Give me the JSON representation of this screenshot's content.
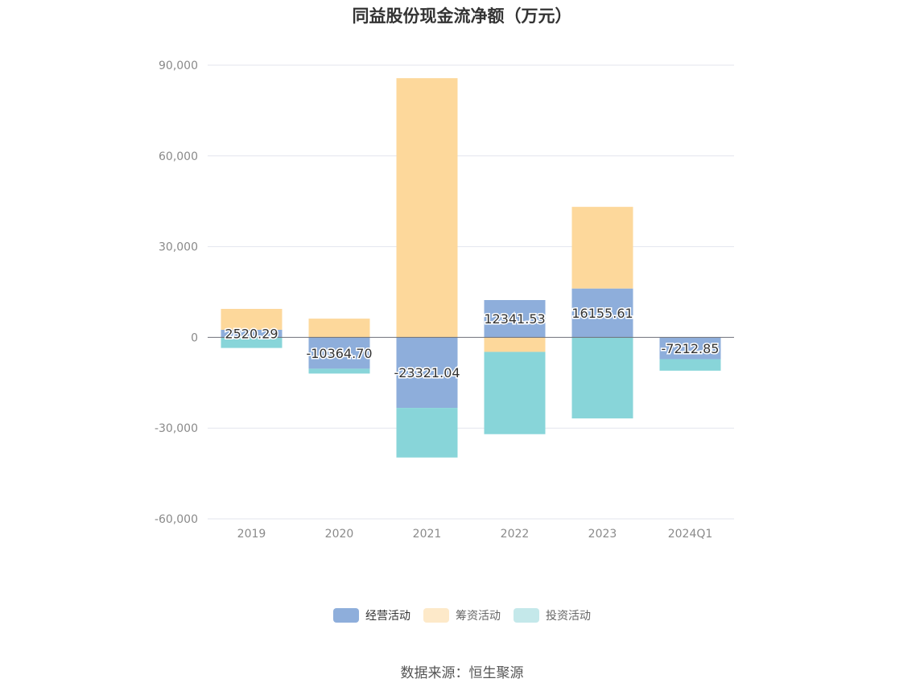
{
  "chart_data": {
    "type": "bar",
    "stacked": true,
    "title": "同益股份现金流净额（万元）",
    "categories": [
      "2019",
      "2020",
      "2021",
      "2022",
      "2023",
      "2024Q1"
    ],
    "series": [
      {
        "name": "经营活动",
        "color": "#8eaedb",
        "values": [
          2520.29,
          -10364.7,
          -23321.04,
          12341.53,
          16155.61,
          -7212.85
        ]
      },
      {
        "name": "筹资活动",
        "color": "#fdd89b",
        "values": [
          6900,
          6200,
          85700,
          -4800,
          27000,
          0
        ]
      },
      {
        "name": "投资活动",
        "color": "#88d5d9",
        "values": [
          -3500,
          -1600,
          -16400,
          -27200,
          -26800,
          -3800
        ]
      }
    ],
    "data_labels": [
      "2520.29",
      "-10364.70",
      "-23321.04",
      "12341.53",
      "16155.61",
      "-7212.85"
    ],
    "ylim": [
      -60000,
      90000
    ],
    "yticks": [
      90000,
      60000,
      30000,
      0,
      -30000,
      -60000
    ],
    "ytick_labels": [
      "90,000",
      "60,000",
      "30,000",
      "0",
      "-30,000",
      "-60,000"
    ],
    "grid": true,
    "legend_position": "bottom",
    "source_text": "数据来源：恒生聚源"
  },
  "legend": {
    "items": [
      {
        "label": "经营活动",
        "swatch": "#8eaedb"
      },
      {
        "label": "筹资活动",
        "swatch": "#fde9c9"
      },
      {
        "label": "投资活动",
        "swatch": "#c4e8ea"
      }
    ]
  }
}
